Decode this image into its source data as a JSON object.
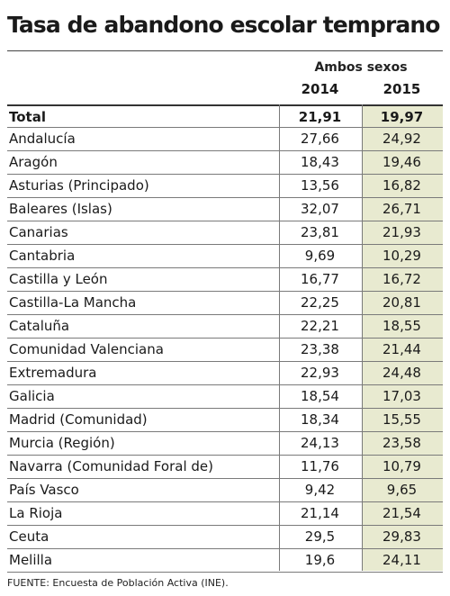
{
  "title": "Tasa de abandono escolar temprano",
  "header": {
    "group": "Ambos sexos",
    "years": [
      "2014",
      "2015"
    ]
  },
  "rows": [
    {
      "name": "Total",
      "v2014": "21,91",
      "v2015": "19,97"
    },
    {
      "name": "Andalucía",
      "v2014": "27,66",
      "v2015": "24,92"
    },
    {
      "name": "Aragón",
      "v2014": "18,43",
      "v2015": "19,46"
    },
    {
      "name": "Asturias (Principado)",
      "v2014": "13,56",
      "v2015": "16,82"
    },
    {
      "name": "Baleares (Islas)",
      "v2014": "32,07",
      "v2015": "26,71"
    },
    {
      "name": "Canarias",
      "v2014": "23,81",
      "v2015": "21,93"
    },
    {
      "name": "Cantabria",
      "v2014": "9,69",
      "v2015": "10,29"
    },
    {
      "name": "Castilla y León",
      "v2014": "16,77",
      "v2015": "16,72"
    },
    {
      "name": "Castilla-La Mancha",
      "v2014": "22,25",
      "v2015": "20,81"
    },
    {
      "name": "Cataluña",
      "v2014": "22,21",
      "v2015": "18,55"
    },
    {
      "name": "Comunidad Valenciana",
      "v2014": "23,38",
      "v2015": "21,44"
    },
    {
      "name": "Extremadura",
      "v2014": "22,93",
      "v2015": "24,48"
    },
    {
      "name": "Galicia",
      "v2014": "18,54",
      "v2015": "17,03"
    },
    {
      "name": "Madrid (Comunidad)",
      "v2014": "18,34",
      "v2015": "15,55"
    },
    {
      "name": "Murcia (Región)",
      "v2014": "24,13",
      "v2015": "23,58"
    },
    {
      "name": "Navarra (Comunidad Foral de)",
      "v2014": "11,76",
      "v2015": "10,79"
    },
    {
      "name": "País Vasco",
      "v2014": "9,42",
      "v2015": "9,65"
    },
    {
      "name": "La Rioja",
      "v2014": "21,14",
      "v2015": "21,54"
    },
    {
      "name": "Ceuta",
      "v2014": "29,5",
      "v2015": "29,83"
    },
    {
      "name": "Melilla",
      "v2014": "19,6",
      "v2015": "24,11"
    }
  ],
  "source": "FUENTE: Encuesta de Población Activa (INE).",
  "colors": {
    "highlight_column": "#e8ead0",
    "rule": "#7a7a7a"
  }
}
